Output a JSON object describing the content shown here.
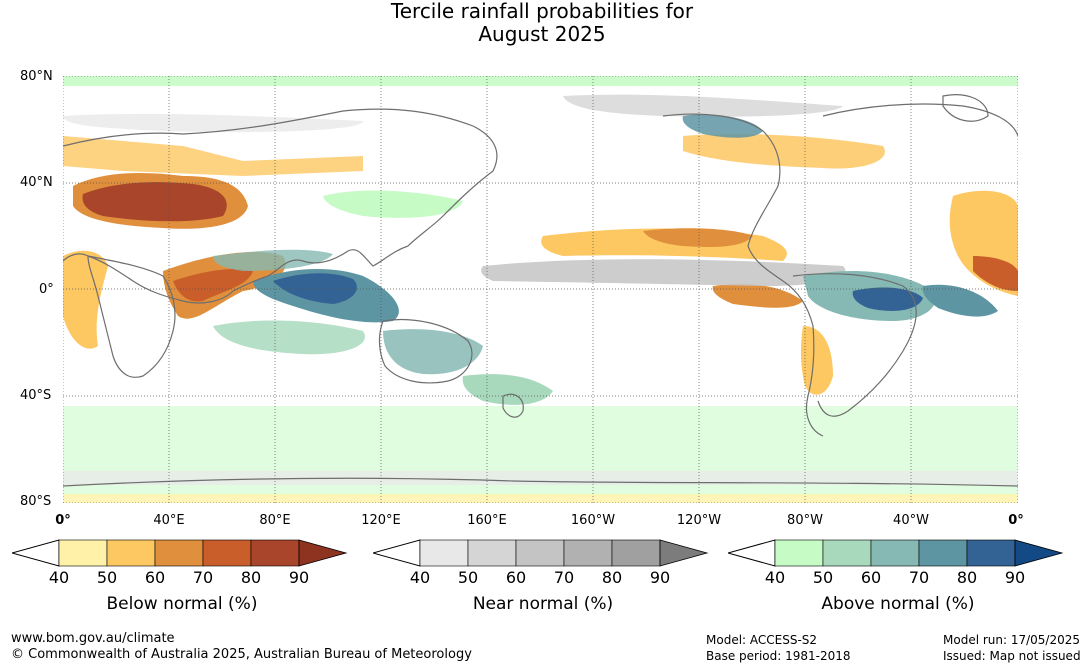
{
  "title": {
    "line1": "Tercile rainfall probabilities for",
    "line2": "August 2025"
  },
  "map": {
    "lat_labels": [
      "80°N",
      "40°N",
      "0°",
      "40°S",
      "80°S"
    ],
    "lon_labels": [
      "0°",
      "40°E",
      "80°E",
      "120°E",
      "160°E",
      "160°W",
      "120°W",
      "80°W",
      "40°W",
      "0°"
    ]
  },
  "legends": [
    {
      "title": "Below normal (%)",
      "ticks": [
        "40",
        "50",
        "60",
        "70",
        "80",
        "90"
      ],
      "colors": [
        "#fff2a8",
        "#fdc762",
        "#e08f3c",
        "#c95e2b",
        "#a8452a",
        "#8e3320"
      ]
    },
    {
      "title": "Near normal (%)",
      "ticks": [
        "40",
        "50",
        "60",
        "70",
        "80",
        "90"
      ],
      "colors": [
        "#e8e8e8",
        "#d5d5d5",
        "#c4c4c4",
        "#b1b1b1",
        "#a0a0a0",
        "#7c7c7c"
      ]
    },
    {
      "title": "Above normal (%)",
      "ticks": [
        "40",
        "50",
        "60",
        "70",
        "80",
        "90"
      ],
      "colors": [
        "#c6fbc6",
        "#a8d9bd",
        "#86b9b3",
        "#5e95a3",
        "#336394",
        "#134a86"
      ]
    }
  ],
  "footer": {
    "website": "www.bom.gov.au/climate",
    "copyright": "© Commonwealth of Australia 2025, Australian Bureau of Meteorology",
    "model": "Model: ACCESS-S2",
    "base_period": "Base period: 1981-2018",
    "model_run": "Model run: 17/05/2025",
    "issued": "Issued: Map not issued"
  }
}
